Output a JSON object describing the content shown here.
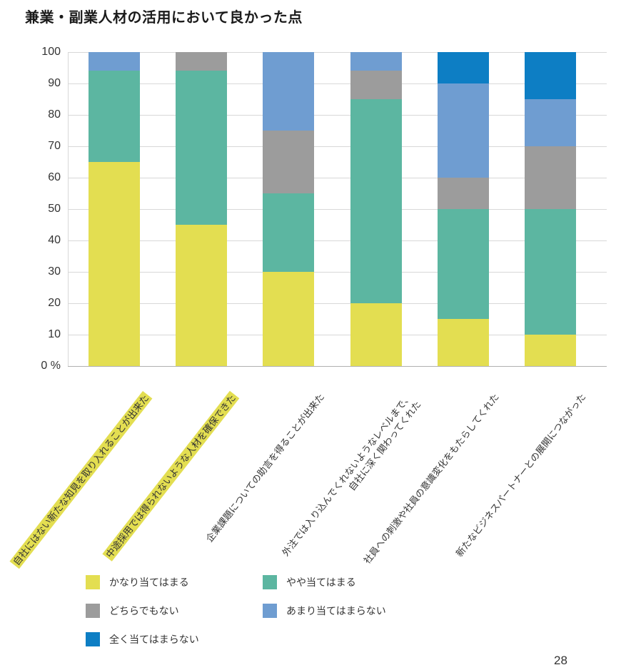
{
  "page_number": "28",
  "colors": {
    "kanari_yellow": "#e3de51",
    "yaya_teal": "#5cb6a1",
    "dochira_gray": "#9c9c9c",
    "amari_blue": "#6f9dd1",
    "mattaku_darkblue": "#0d7ec4",
    "gridline": "#d8d8d8"
  },
  "chart_data": {
    "type": "bar",
    "stacked": true,
    "percent": true,
    "title": "兼業・副業人材の活用において良かった点",
    "ylim": [
      0,
      100
    ],
    "ytick_interval": 10,
    "grid": true,
    "legend_position": "bottom",
    "y_axis_labels": [
      "100",
      "90",
      "80",
      "70",
      "60",
      "50",
      "40",
      "30",
      "20",
      "10",
      "0 %"
    ],
    "categories": [
      {
        "lines": [
          "自社にはない新たな知見を取り入れることが出来た"
        ],
        "highlighted": true
      },
      {
        "lines": [
          "中途採用では得られないような人材を確保できた"
        ],
        "highlighted": true
      },
      {
        "lines": [
          "企業課題についての助言を得ることが出来た"
        ],
        "highlighted": false
      },
      {
        "lines": [
          "外注では入り込んでくれないようなレベルまで、",
          "自社に深く関わってくれた"
        ],
        "highlighted": false
      },
      {
        "lines": [
          "社員への刺激や社員の意識変化をもたらしてくれた"
        ],
        "highlighted": false
      },
      {
        "lines": [
          "新たなビジネスパートナーとの展開につながった"
        ],
        "highlighted": false
      }
    ],
    "series": [
      {
        "name": "かなり当てはまる",
        "color": "#e3de51",
        "values": [
          65,
          45,
          30,
          20,
          15,
          10
        ]
      },
      {
        "name": "やや当てはまる",
        "color": "#5cb6a1",
        "values": [
          29,
          49,
          25,
          65,
          35,
          40
        ]
      },
      {
        "name": "どちらでもない",
        "color": "#9c9c9c",
        "values": [
          0,
          6,
          20,
          9,
          10,
          20
        ]
      },
      {
        "name": "あまり当てはまらない",
        "color": "#6f9dd1",
        "values": [
          6,
          0,
          25,
          6,
          30,
          15
        ]
      },
      {
        "name": "全く当てはまらない",
        "color": "#0d7ec4",
        "values": [
          0,
          0,
          0,
          0,
          10,
          15
        ]
      }
    ]
  }
}
